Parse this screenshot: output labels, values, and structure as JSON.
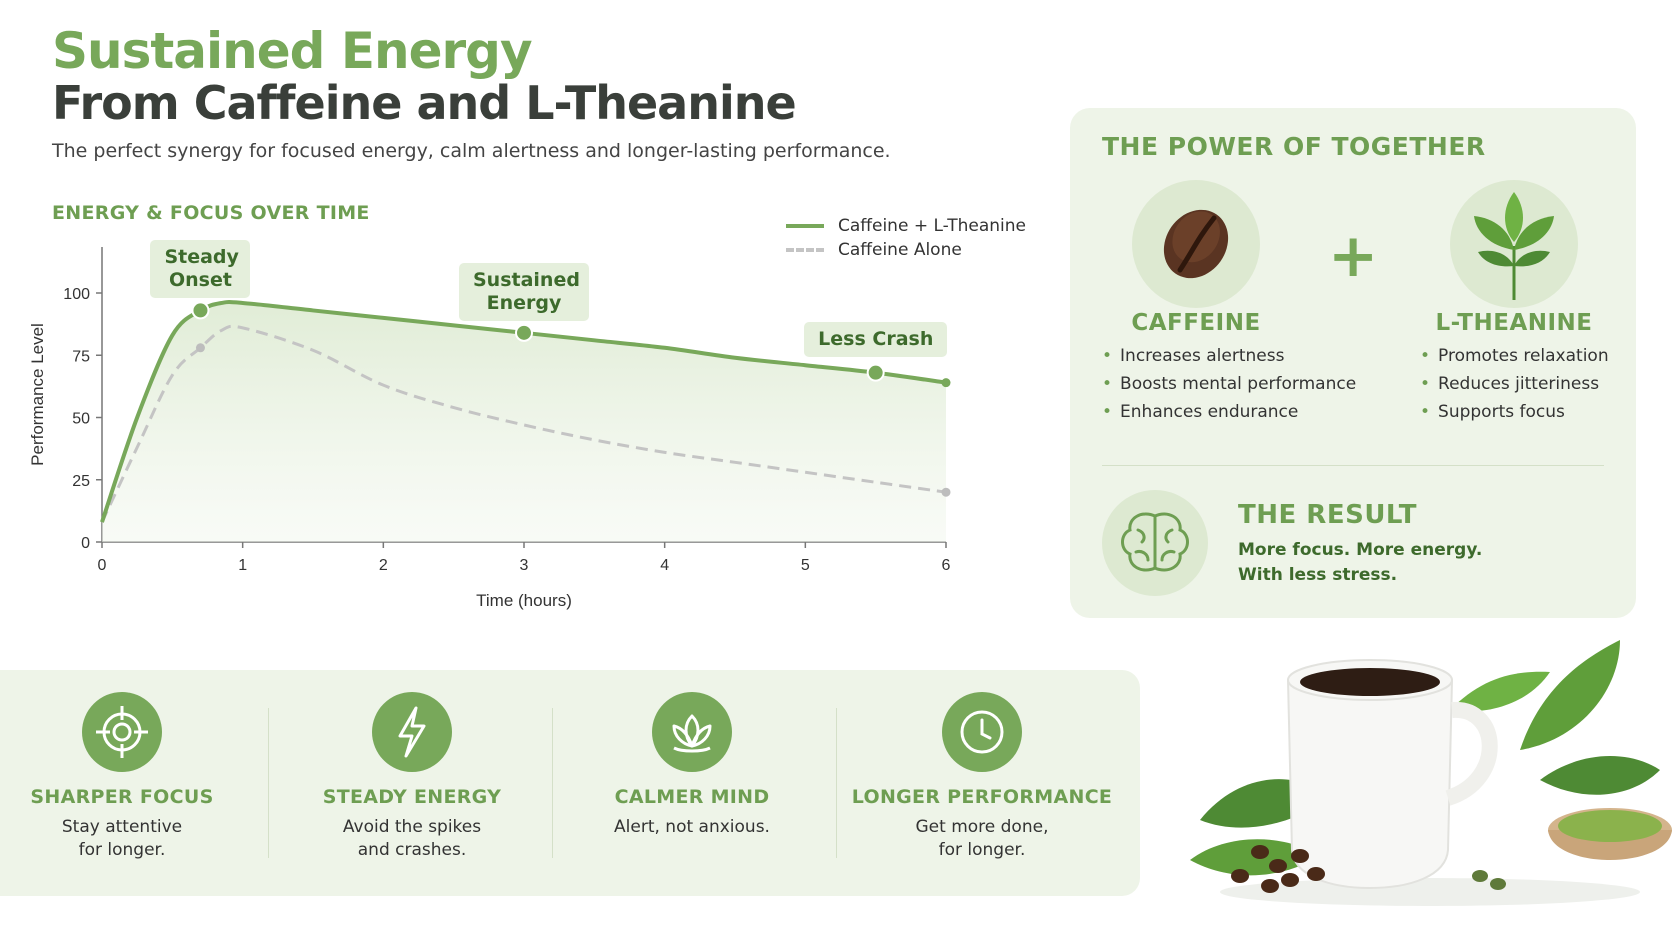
{
  "header": {
    "title_line1": "Sustained Energy",
    "title_line2": "From Caffeine and L-Theanine",
    "subtitle": "The perfect synergy for focused energy, calm alertness and longer-lasting performance."
  },
  "chart_heading": "ENERGY & FOCUS OVER TIME",
  "chart_data": {
    "type": "line",
    "title": "",
    "xlabel": "Time (hours)",
    "ylabel": "Performance Level",
    "xlim": [
      0,
      6
    ],
    "ylim": [
      0,
      110
    ],
    "x_ticks": [
      0,
      1,
      2,
      3,
      4,
      5,
      6
    ],
    "y_ticks": [
      0,
      25,
      50,
      75,
      100
    ],
    "grid": false,
    "legend": "top-right",
    "series": [
      {
        "name": "Caffeine + L-Theanine",
        "style": "solid",
        "color": "#78a85a",
        "x": [
          0,
          0.25,
          0.5,
          0.7,
          0.85,
          1.0,
          1.5,
          2.0,
          2.5,
          3.0,
          3.5,
          4.0,
          4.5,
          5.0,
          5.5,
          6.0
        ],
        "y": [
          8,
          50,
          83,
          93,
          96,
          96,
          93,
          90,
          87,
          84,
          81,
          78,
          74,
          71,
          68,
          64
        ]
      },
      {
        "name": "Caffeine Alone",
        "style": "dashed",
        "color": "#c4c4c4",
        "x": [
          0,
          0.25,
          0.5,
          0.7,
          0.85,
          1.0,
          1.5,
          2.0,
          2.5,
          3.0,
          3.5,
          4.0,
          4.5,
          5.0,
          5.5,
          6.0
        ],
        "y": [
          8,
          38,
          67,
          78,
          85,
          86,
          77,
          63,
          54,
          47,
          41,
          36,
          32,
          28,
          24,
          20
        ]
      }
    ],
    "annotations": [
      {
        "label": "Steady Onset",
        "x": 0.7,
        "y": 93
      },
      {
        "label": "Sustained Energy",
        "x": 3.0,
        "y": 84
      },
      {
        "label": "Less Crash",
        "x": 5.5,
        "y": 68
      }
    ]
  },
  "power": {
    "title": "THE POWER OF TOGETHER",
    "plus": "+",
    "caffeine": {
      "name": "CAFFEINE",
      "icon": "coffee-bean-icon",
      "items": [
        "Increases alertness",
        "Boosts mental performance",
        "Enhances endurance"
      ]
    },
    "theanine": {
      "name": "L-THEANINE",
      "icon": "tea-leaf-icon",
      "items": [
        "Promotes relaxation",
        "Reduces jitteriness",
        "Supports focus"
      ]
    },
    "result": {
      "title": "THE RESULT",
      "icon": "brain-icon",
      "line1": "More focus. More energy.",
      "line2": "With less stress."
    }
  },
  "benefits": [
    {
      "icon": "target-icon",
      "title": "SHARPER FOCUS",
      "line1": "Stay attentive",
      "line2": "for longer."
    },
    {
      "icon": "lightning-icon",
      "title": "STEADY ENERGY",
      "line1": "Avoid the spikes",
      "line2": "and crashes."
    },
    {
      "icon": "lotus-icon",
      "title": "CALMER MIND",
      "line1": "Alert, not anxious.",
      "line2": ""
    },
    {
      "icon": "clock-icon",
      "title": "LONGER PERFORMANCE",
      "line1": "Get more done,",
      "line2": "for longer."
    }
  ],
  "colors": {
    "accent": "#78a85a",
    "accent_dark": "#3d6a2c",
    "panel_bg": "#eef4e8",
    "dashed": "#c4c4c4"
  }
}
